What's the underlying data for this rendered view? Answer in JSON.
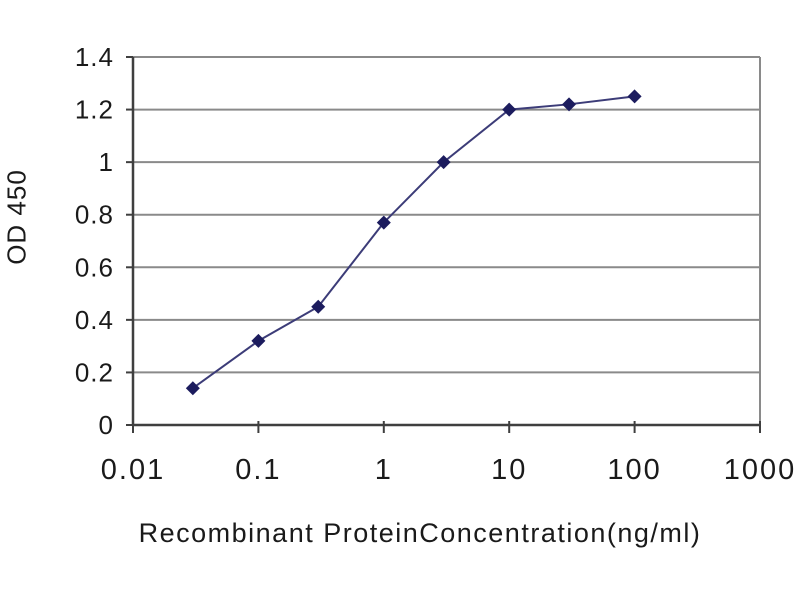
{
  "figure": {
    "background": "#ffffff"
  },
  "chart_data": {
    "type": "line",
    "x": [
      0.03,
      0.1,
      0.3,
      1,
      3,
      10,
      30,
      100
    ],
    "values": [
      0.14,
      0.32,
      0.45,
      0.77,
      1.0,
      1.2,
      1.22,
      1.25
    ],
    "title": "",
    "xlabel": "Recombinant ProteinConcentration(ng/ml)",
    "ylabel": "OD 450",
    "x_scale": "log",
    "xlim": [
      0.01,
      1000
    ],
    "ylim": [
      0,
      1.4
    ],
    "x_ticks": [
      0.01,
      0.1,
      1,
      10,
      100,
      1000
    ],
    "x_tick_labels": [
      "0.01",
      "0.1",
      "1",
      "10",
      "100",
      "1000"
    ],
    "y_ticks": [
      0,
      0.2,
      0.4,
      0.6,
      0.8,
      1,
      1.2,
      1.4
    ],
    "y_tick_labels": [
      "0",
      "0.2",
      "0.4",
      "0.6",
      "0.8",
      "1",
      "1.2",
      "1.4"
    ],
    "grid": "horizontal",
    "legend": "none",
    "marker": "diamond",
    "colors": {
      "line": "#3c3c78",
      "marker": "#1c1c5e",
      "gridline": "#8a8a8a",
      "axis": "#3f3f3f",
      "text": "#1a1a1a"
    }
  }
}
